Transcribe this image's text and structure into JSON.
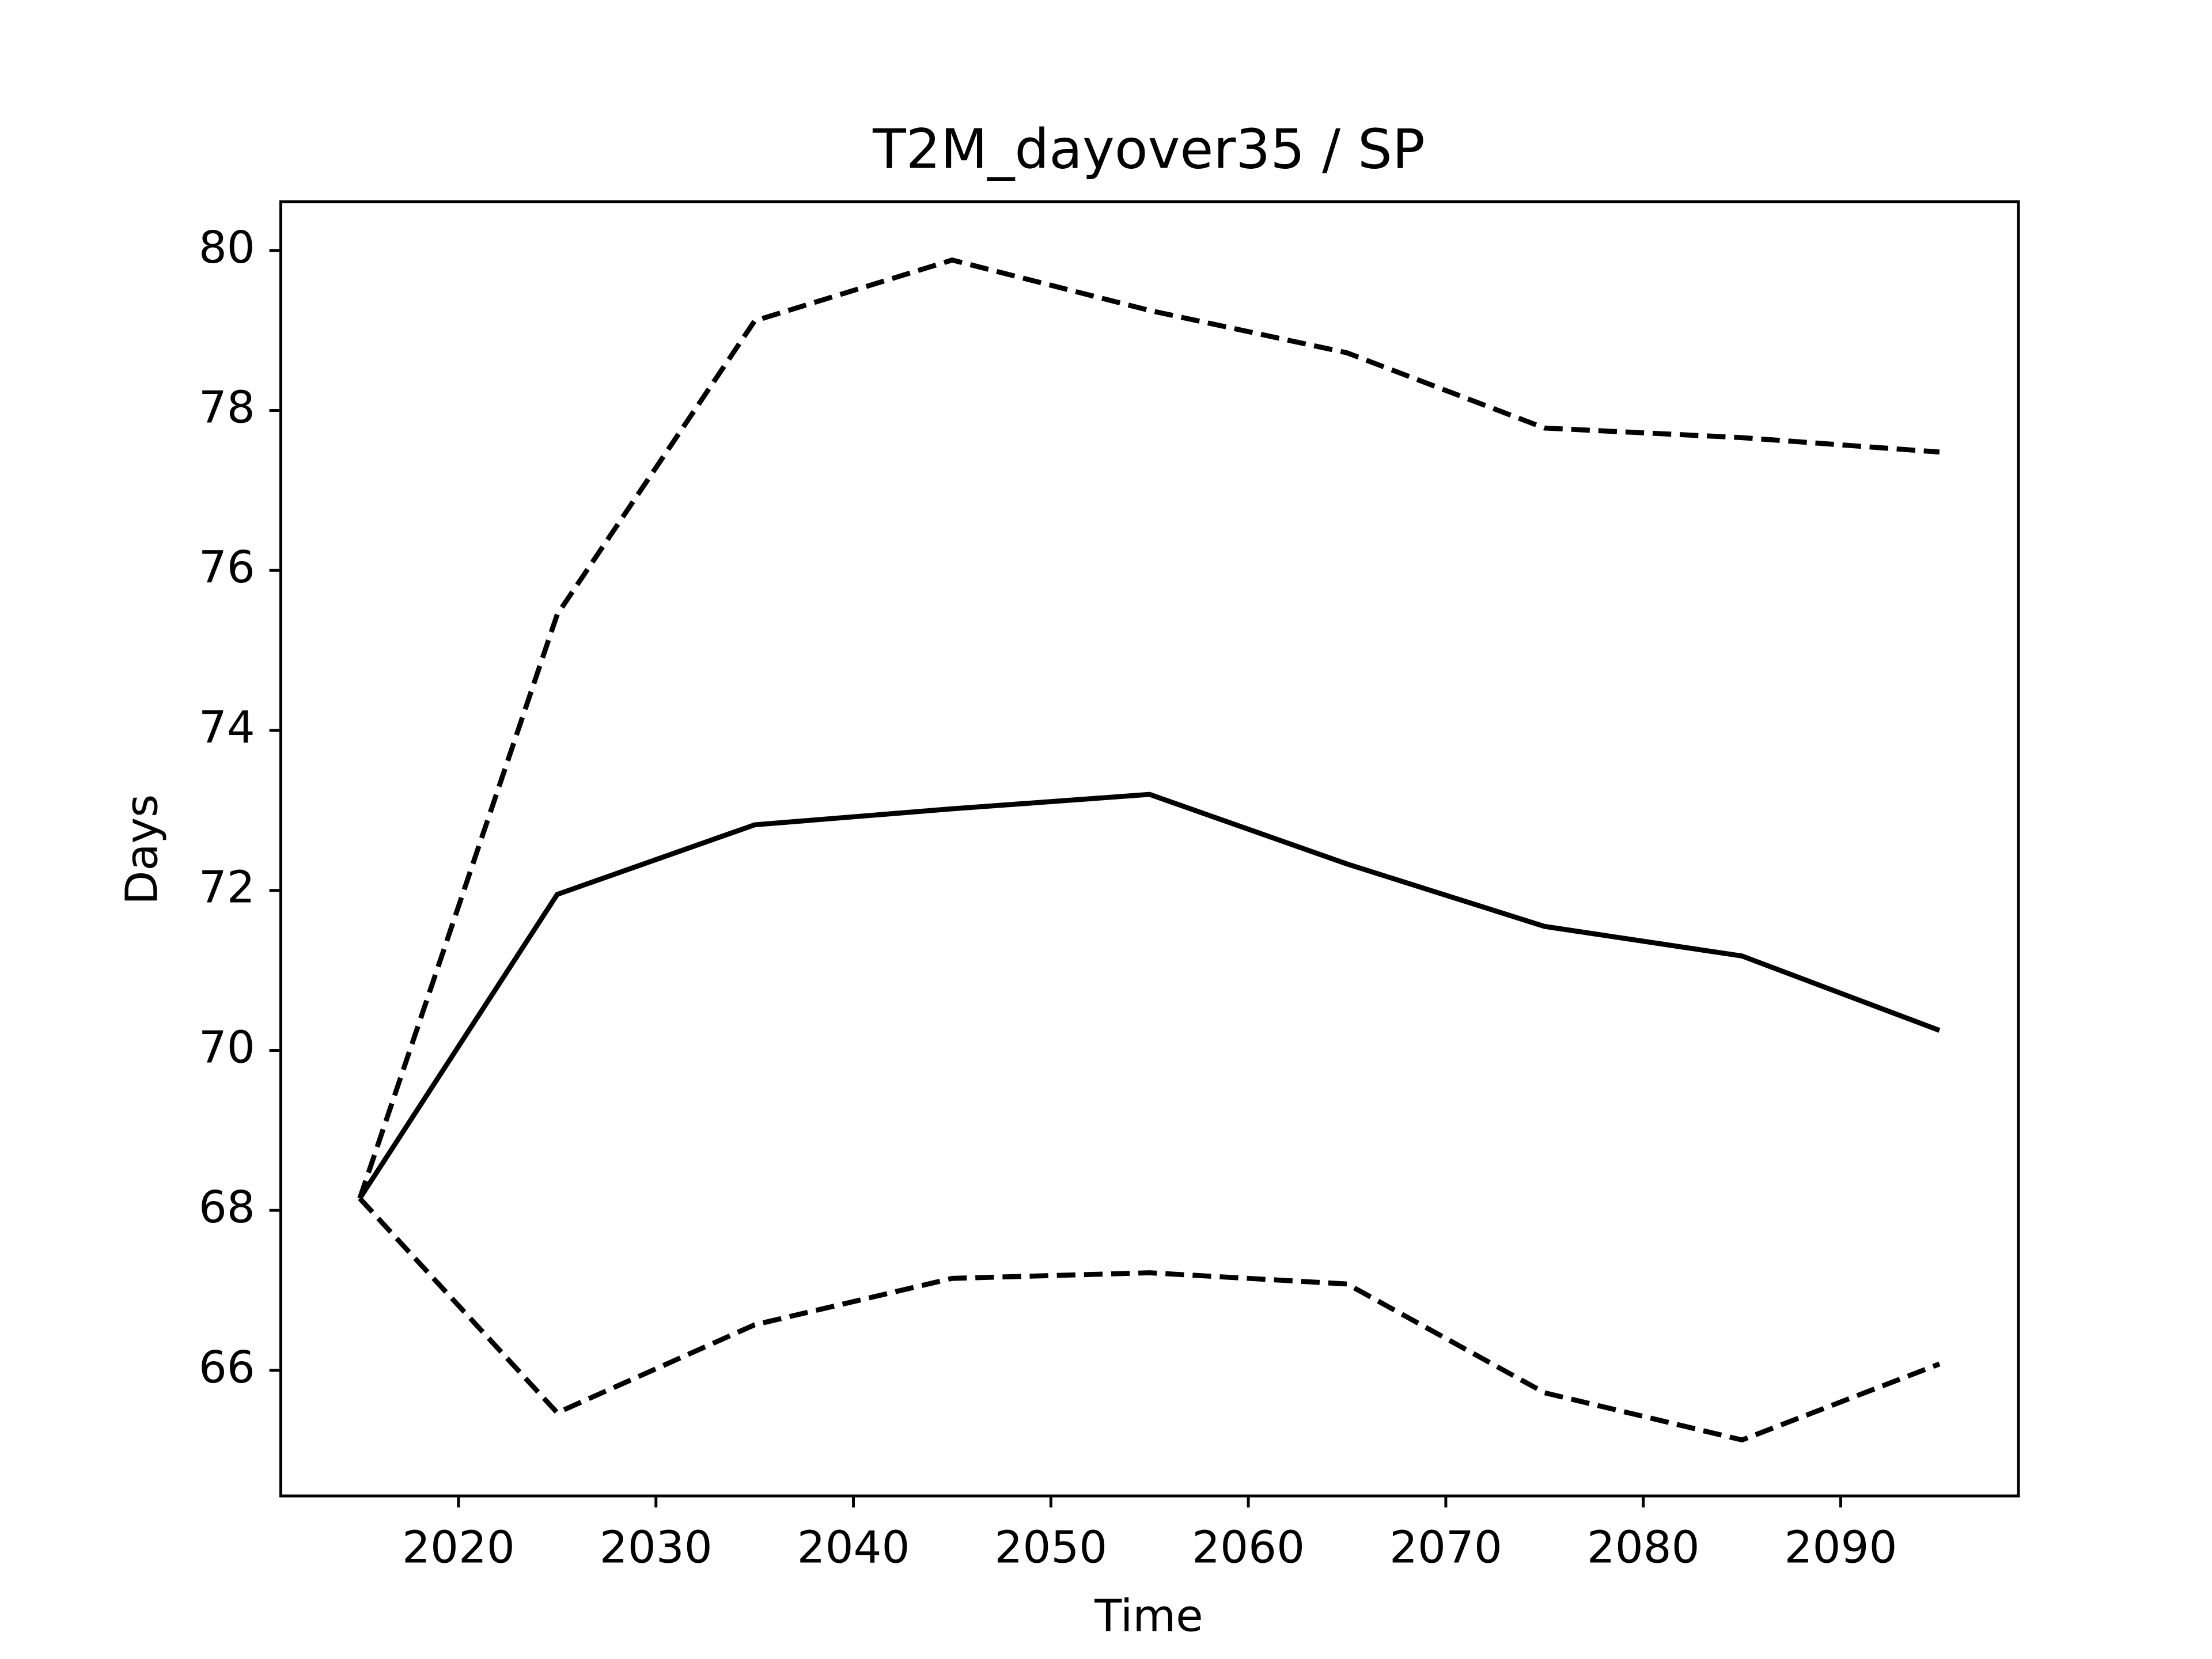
{
  "chart_data": {
    "type": "line",
    "title": "T2M_dayover35 / SP",
    "xlabel": "Time",
    "ylabel": "Days",
    "x": [
      2015,
      2025,
      2035,
      2045,
      2055,
      2065,
      2075,
      2085,
      2095
    ],
    "series": [
      {
        "color": "#000000",
        "linestyle": "solid",
        "values": [
          68.15,
          71.95,
          72.82,
          73.02,
          73.2,
          72.33,
          71.55,
          71.18,
          70.25
        ]
      },
      {
        "color": "#000000",
        "linestyle": "dashed",
        "values": [
          68.15,
          75.45,
          79.12,
          79.88,
          79.25,
          78.72,
          77.78,
          77.66,
          77.48
        ]
      },
      {
        "color": "#000000",
        "linestyle": "dashed",
        "values": [
          68.15,
          65.47,
          66.57,
          67.15,
          67.22,
          67.08,
          65.72,
          65.13,
          66.08
        ]
      }
    ],
    "xlim": [
      2011,
      2099
    ],
    "xticks": [
      2020,
      2030,
      2040,
      2050,
      2060,
      2070,
      2080,
      2090
    ],
    "ylim": [
      64.43,
      80.61
    ],
    "yticks": [
      66,
      68,
      70,
      72,
      74,
      76,
      78,
      80
    ],
    "grid": false
  }
}
